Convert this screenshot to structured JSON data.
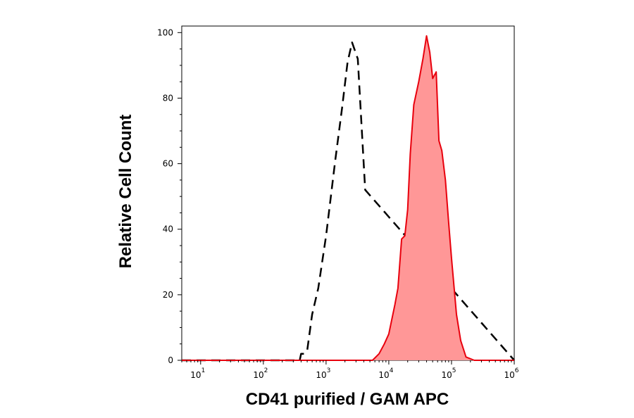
{
  "chart_data": {
    "type": "area",
    "title": "",
    "xlabel": "CD41 purified / GAM APC",
    "ylabel": "Relative Cell Count",
    "x_scale": "log",
    "xlim": [
      5,
      1000000
    ],
    "ylim": [
      0,
      102
    ],
    "grid": false,
    "legend": "none",
    "x_ticks": [
      {
        "base": "10",
        "exp": "1",
        "value": 10
      },
      {
        "base": "10",
        "exp": "2",
        "value": 100
      },
      {
        "base": "10",
        "exp": "3",
        "value": 1000
      },
      {
        "base": "10",
        "exp": "4",
        "value": 10000
      },
      {
        "base": "10",
        "exp": "5",
        "value": 100000
      },
      {
        "base": "10",
        "exp": "6",
        "value": 1000000
      }
    ],
    "y_ticks": [
      "0",
      "20",
      "40",
      "60",
      "80",
      "100"
    ],
    "series": [
      {
        "style": "dashed",
        "color": "#000000",
        "fill": "none",
        "x": [
          5,
          380,
          400,
          450,
          500,
          600,
          750,
          1000,
          1400,
          1800,
          2200,
          2600,
          3200,
          4200,
          1000000
        ],
        "y": [
          0,
          0,
          2,
          2,
          3,
          14,
          22,
          38,
          61,
          77,
          91,
          97,
          92,
          52,
          0
        ]
      },
      {
        "style": "solid",
        "color": "#e8000d",
        "fill": "#ff9797",
        "x": [
          5,
          5500,
          7000,
          8500,
          10000,
          12500,
          14000,
          16000,
          18000,
          20000,
          22000,
          25000,
          30000,
          35000,
          40000,
          45000,
          50000,
          57000,
          63000,
          70000,
          80000,
          90000,
          100000,
          120000,
          140000,
          170000,
          230000,
          1000000
        ],
        "y": [
          0,
          0,
          2,
          5,
          8,
          17,
          22,
          37,
          38,
          46,
          63,
          78,
          85,
          92,
          99,
          94,
          86,
          88,
          67,
          64,
          55,
          42,
          31,
          14,
          6,
          1,
          0,
          0
        ]
      }
    ]
  }
}
